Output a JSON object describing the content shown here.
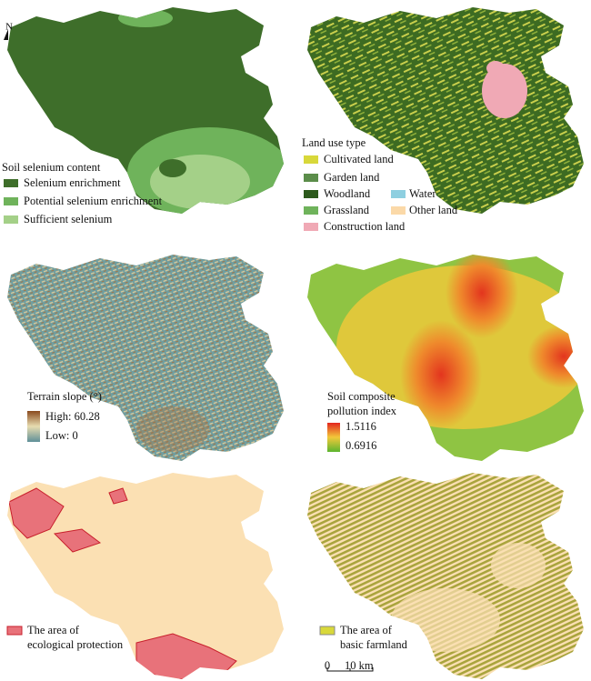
{
  "north": "N",
  "selenium": {
    "title": "Soil selenium content",
    "items": [
      "Selenium enrichment",
      "Potential selenium enrichment",
      "Sufficient selenium"
    ]
  },
  "land_use": {
    "title": "Land use type",
    "items": [
      "Cultivated land",
      "Garden land",
      "Woodland",
      "Water",
      "Grassland",
      "Other land",
      "Construction land"
    ]
  },
  "slope": {
    "title": "Terrain slope (°)",
    "high": "High: 60.28",
    "low": "Low: 0"
  },
  "pollution": {
    "title": [
      "Soil composite",
      "pollution index"
    ],
    "high": "1.5116",
    "low": "0.6916"
  },
  "ecological": {
    "label": [
      "The area of",
      "ecological protection"
    ]
  },
  "farmland": {
    "label": [
      "The area of",
      "basic farmland"
    ]
  },
  "scale": {
    "start": "0",
    "end": "10 km"
  }
}
